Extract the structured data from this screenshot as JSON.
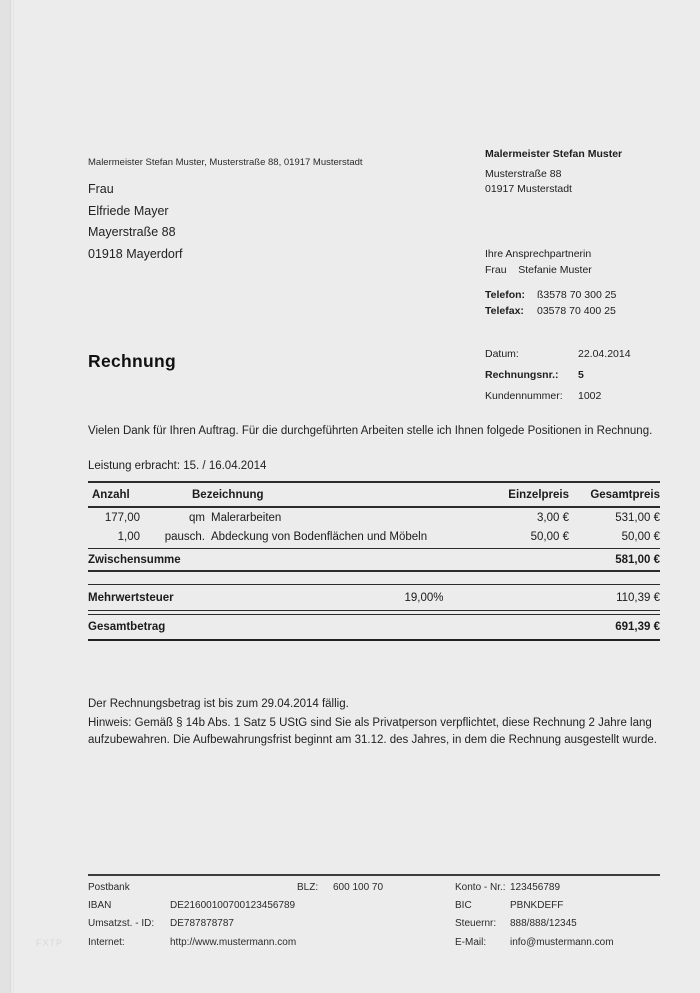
{
  "page": {
    "watermark": "FXTP"
  },
  "sender_line": "Malermeister Stefan Muster, Musterstraße 88, 01917 Musterstadt",
  "recipient": {
    "line1": "Frau",
    "line2": "Elfriede Mayer",
    "line3": "Mayerstraße 88",
    "line4": "01918 Mayerdorf"
  },
  "company": {
    "name": "Malermeister Stefan Muster",
    "street": "Musterstraße 88",
    "city": "01917 Musterstadt"
  },
  "contact": {
    "intro": "Ihre Ansprechpartnerin",
    "person": "Frau    Stefanie Muster",
    "phone_label": "Telefon:",
    "phone": "ß3578 70 300 25",
    "fax_label": "Telefax:",
    "fax": "03578 70 400 25"
  },
  "meta": {
    "date_label": "Datum:",
    "date": "22.04.2014",
    "invoice_no_label": "Rechnungsnr.:",
    "invoice_no": "5",
    "customer_no_label": "Kundennummer:",
    "customer_no": "1002"
  },
  "title": "Rechnung",
  "intro_text": "Vielen Dank für Ihren Auftrag. Für die durchgeführten Arbeiten stelle ich Ihnen folgede Positionen in Rechnung.",
  "service_period": "Leistung erbracht: 15. / 16.04.2014",
  "items_table": {
    "headers": {
      "qty": "Anzahl",
      "desc": "Bezeichnung",
      "unit_price": "Einzelpreis",
      "total_price": "Gesamtpreis"
    },
    "rows": [
      {
        "qty": "177,00",
        "unit": "qm",
        "desc": "Malerarbeiten",
        "unit_price": "3,00 €",
        "total": "531,00 €"
      },
      {
        "qty": "1,00",
        "unit": "pausch.",
        "desc": "Abdeckung von Bodenflächen und Möbeln",
        "unit_price": "50,00 €",
        "total": "50,00 €"
      }
    ],
    "subtotal_label": "Zwischensumme",
    "subtotal": "581,00 €",
    "vat_label": "Mehrwertsteuer",
    "vat_rate": "19,00%",
    "vat_amount": "110,39 €",
    "total_label": "Gesamtbetrag",
    "total": "691,39 €"
  },
  "notes": {
    "due": "Der Rechnungsbetrag ist bis zum 29.04.2014 fällig.",
    "hint": "Hinweis: Gemäß § 14b Abs. 1 Satz 5 UStG sind Sie als Privatperson verpflichtet, diese Rechnung 2 Jahre lang aufzubewahren. Die Aufbewahrungsfrist beginnt am 31.12. des Jahres, in dem die Rechnung ausgestellt wurde."
  },
  "footer": {
    "bank_name": "Postbank",
    "blz_label": "BLZ:",
    "blz": "600 100 70",
    "konto_label": "Konto - Nr.:",
    "konto": "123456789",
    "iban_label": "IBAN",
    "iban": "DE21600100700123456789",
    "bic_label": "BIC",
    "bic": "PBNKDEFF",
    "ust_label": "Umsatzst. - ID:",
    "ust": "DE787878787",
    "steuer_label": "Steuernr:",
    "steuer": "888/888/12345",
    "internet_label": "Internet:",
    "internet": "http://www.mustermann.com",
    "email_label": "E-Mail:",
    "email": "info@mustermann.com"
  }
}
